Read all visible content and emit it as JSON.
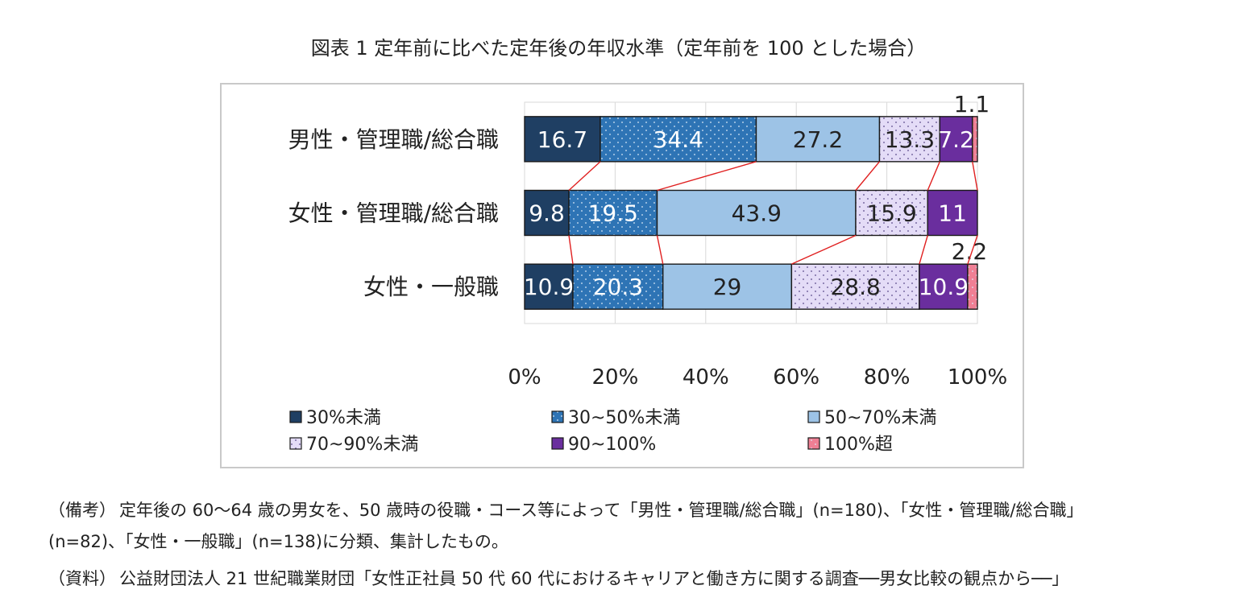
{
  "figure": {
    "title": "図表 1  定年前に比べた定年後の年収水準（定年前を 100 とした場合）"
  },
  "chart_data": {
    "type": "bar",
    "orientation": "horizontal",
    "stacked": "percent",
    "categories": [
      "男性・管理職/総合職",
      "女性・管理職/総合職",
      "女性・一般職"
    ],
    "series": [
      {
        "name": "30%未満",
        "values": [
          16.7,
          9.8,
          10.9
        ],
        "color": "#1f3f63",
        "pattern": "solid",
        "label_color": "#ffffff"
      },
      {
        "name": "30~50%未満",
        "values": [
          34.4,
          19.5,
          20.3
        ],
        "color": "#2e74b5",
        "pattern": "dots-light",
        "label_color": "#ffffff"
      },
      {
        "name": "50~70%未満",
        "values": [
          27.2,
          43.9,
          29
        ],
        "color": "#9dc3e6",
        "pattern": "solid",
        "label_color": "#222222"
      },
      {
        "name": "70~90%未満",
        "values": [
          13.3,
          15.9,
          28.8
        ],
        "color": "#e4dcf7",
        "pattern": "dots-dark",
        "label_color": "#222222"
      },
      {
        "name": "90~100%",
        "values": [
          7.2,
          11,
          10.9
        ],
        "color": "#6a2e9e",
        "pattern": "solid",
        "label_color": "#ffffff"
      },
      {
        "name": "100%超",
        "values": [
          1.1,
          0,
          2.2
        ],
        "color": "#ef7f94",
        "pattern": "dots-light",
        "label_color": "#222222"
      }
    ],
    "data_labels": [
      [
        "16.7",
        "34.4",
        "27.2",
        "13.3",
        "7.2",
        "1.1"
      ],
      [
        "9.8",
        "19.5",
        "43.9",
        "15.9",
        "11",
        ""
      ],
      [
        "10.9",
        "20.3",
        "29",
        "28.8",
        "10.9",
        "2.2"
      ]
    ],
    "xlim": [
      0,
      100
    ],
    "x_ticks": [
      "0%",
      "20%",
      "40%",
      "60%",
      "80%",
      "100%"
    ],
    "grid": "vertical",
    "series_lines": true,
    "series_line_color": "#e02020",
    "legend_position": "bottom",
    "legend_labels": [
      "30%未満",
      "30~50%未満",
      "50~70%未満",
      "70~90%未満",
      "90~100%",
      "100%超"
    ]
  },
  "notes": {
    "remarks_tag": "（備考）",
    "remarks_line1": "定年後の 60～64 歳の男女を、50 歳時の役職・コース等によって「男性・管理職/総合職」(n=180)、「女性・管理職/総合職」",
    "remarks_line2": "(n=82)、「女性・一般職」(n=138)に分類、集計したもの。",
    "source_tag": "（資料）",
    "source_text": "公益財団法人 21 世紀職業財団「女性正社員 50 代 60 代におけるキャリアと働き方に関する調査──男女比較の観点から──」"
  }
}
